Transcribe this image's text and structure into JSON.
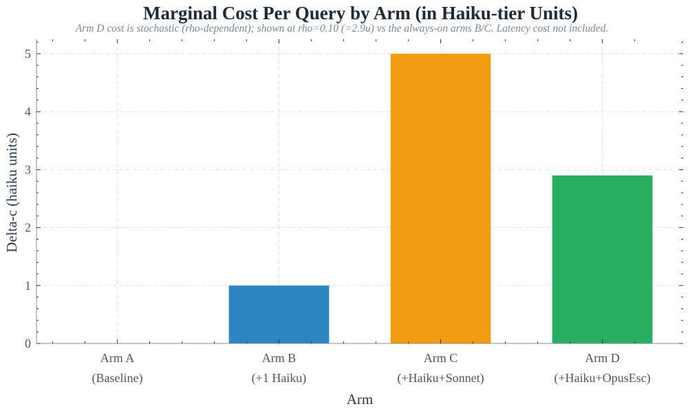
{
  "chart_data": {
    "type": "bar",
    "title": "Marginal Cost Per Query by Arm (in Haiku-tier Units)",
    "subtitle": "Arm D cost is stochastic (rho-dependent); shown at rho=0.10 (=2.9u) vs the always-on arms B/C. Latency cost not included.",
    "xlabel": "Arm",
    "ylabel": "Delta-c (haiku units)",
    "categories": [
      [
        "Arm A",
        "(Baseline)"
      ],
      [
        "Arm B",
        "(+1 Haiku)"
      ],
      [
        "Arm C",
        "(+Haiku+Sonnet)"
      ],
      [
        "Arm D",
        "(+Haiku+OpusEsc)"
      ]
    ],
    "values": [
      0,
      1.0,
      5.0,
      2.9
    ],
    "colors": [
      "#2e86c1",
      "#2e86c1",
      "#f39c12",
      "#27ae60"
    ],
    "ylim": [
      0,
      5.25
    ],
    "yticks": [
      0,
      1,
      2,
      3,
      4,
      5
    ],
    "grid": true
  }
}
